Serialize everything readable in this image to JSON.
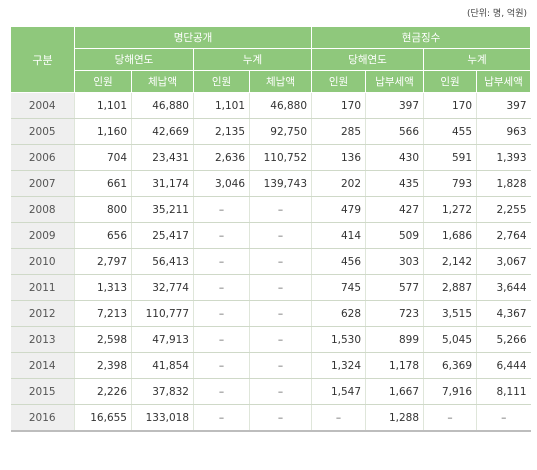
{
  "unit_note": "(단위: 명, 억원)",
  "headers": {
    "category": "구분",
    "group1": "명단공개",
    "group2": "현금징수",
    "current_year": "당해연도",
    "cumulative": "누계",
    "people": "인원",
    "arrears": "체납액",
    "payment": "납부세액"
  },
  "rows": [
    {
      "year": "2004",
      "c1": "1,101",
      "c2": "46,880",
      "c3": "1,101",
      "c4": "46,880",
      "c5": "170",
      "c6": "397",
      "c7": "170",
      "c8": "397"
    },
    {
      "year": "2005",
      "c1": "1,160",
      "c2": "42,669",
      "c3": "2,135",
      "c4": "92,750",
      "c5": "285",
      "c6": "566",
      "c7": "455",
      "c8": "963"
    },
    {
      "year": "2006",
      "c1": "704",
      "c2": "23,431",
      "c3": "2,636",
      "c4": "110,752",
      "c5": "136",
      "c6": "430",
      "c7": "591",
      "c8": "1,393"
    },
    {
      "year": "2007",
      "c1": "661",
      "c2": "31,174",
      "c3": "3,046",
      "c4": "139,743",
      "c5": "202",
      "c6": "435",
      "c7": "793",
      "c8": "1,828"
    },
    {
      "year": "2008",
      "c1": "800",
      "c2": "35,211",
      "c3": "–",
      "c4": "–",
      "c5": "479",
      "c6": "427",
      "c7": "1,272",
      "c8": "2,255"
    },
    {
      "year": "2009",
      "c1": "656",
      "c2": "25,417",
      "c3": "–",
      "c4": "–",
      "c5": "414",
      "c6": "509",
      "c7": "1,686",
      "c8": "2,764"
    },
    {
      "year": "2010",
      "c1": "2,797",
      "c2": "56,413",
      "c3": "–",
      "c4": "–",
      "c5": "456",
      "c6": "303",
      "c7": "2,142",
      "c8": "3,067"
    },
    {
      "year": "2011",
      "c1": "1,313",
      "c2": "32,774",
      "c3": "–",
      "c4": "–",
      "c5": "745",
      "c6": "577",
      "c7": "2,887",
      "c8": "3,644"
    },
    {
      "year": "2012",
      "c1": "7,213",
      "c2": "110,777",
      "c3": "–",
      "c4": "–",
      "c5": "628",
      "c6": "723",
      "c7": "3,515",
      "c8": "4,367"
    },
    {
      "year": "2013",
      "c1": "2,598",
      "c2": "47,913",
      "c3": "–",
      "c4": "–",
      "c5": "1,530",
      "c6": "899",
      "c7": "5,045",
      "c8": "5,266"
    },
    {
      "year": "2014",
      "c1": "2,398",
      "c2": "41,854",
      "c3": "–",
      "c4": "–",
      "c5": "1,324",
      "c6": "1,178",
      "c7": "6,369",
      "c8": "6,444"
    },
    {
      "year": "2015",
      "c1": "2,226",
      "c2": "37,832",
      "c3": "–",
      "c4": "–",
      "c5": "1,547",
      "c6": "1,667",
      "c7": "7,916",
      "c8": "8,111"
    },
    {
      "year": "2016",
      "c1": "16,655",
      "c2": "133,018",
      "c3": "–",
      "c4": "–",
      "c5": "–",
      "c6": "1,288",
      "c7": "–",
      "c8": "–"
    }
  ]
}
